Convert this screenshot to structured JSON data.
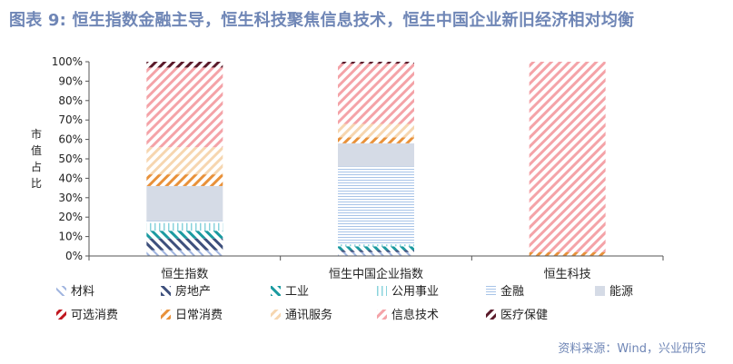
{
  "title": "图表 9: 恒生指数金融主导，恒生科技聚焦信息技术，恒生中国企业新旧经济相对均衡",
  "source": "资料来源：Wind，兴业研究",
  "colors": {
    "材料": "#9fb4df",
    "房地产": "#3d4f7c",
    "工业": "#1a9aa0",
    "公用事业": "#8ad3dc",
    "金融": "#a8c4e8",
    "能源": "#d5dbe6",
    "可选消费": "#c0161e",
    "日常消费": "#e8913a",
    "通讯服务": "#f6d6b0",
    "信息技术": "#f4a3a8",
    "医疗保健": "#5a1a2a"
  },
  "chart_data": {
    "type": "bar",
    "stacked": true,
    "categories": [
      "恒生指数",
      "恒生中国企业指数",
      "恒生科技"
    ],
    "ylabel": "市值占比",
    "ylim": [
      0,
      100
    ],
    "yticks": [
      "0%",
      "10%",
      "20%",
      "30%",
      "40%",
      "50%",
      "60%",
      "70%",
      "80%",
      "90%",
      "100%"
    ],
    "legend_position": "bottom",
    "series": [
      {
        "name": "材料",
        "values": [
          3,
          2,
          0
        ]
      },
      {
        "name": "房地产",
        "values": [
          6,
          1,
          0
        ]
      },
      {
        "name": "工业",
        "values": [
          4,
          2,
          0
        ]
      },
      {
        "name": "公用事业",
        "values": [
          4,
          1,
          0
        ]
      },
      {
        "name": "金融",
        "values": [
          1,
          40,
          0
        ]
      },
      {
        "name": "能源",
        "values": [
          18,
          12,
          0
        ]
      },
      {
        "name": "可选消费",
        "values": [
          0,
          0,
          0
        ]
      },
      {
        "name": "日常消费",
        "values": [
          6,
          3,
          2
        ]
      },
      {
        "name": "通讯服务",
        "values": [
          14,
          7,
          0
        ]
      },
      {
        "name": "信息技术",
        "values": [
          41,
          31,
          98
        ]
      },
      {
        "name": "医疗保健",
        "values": [
          3,
          1,
          0
        ]
      }
    ]
  }
}
